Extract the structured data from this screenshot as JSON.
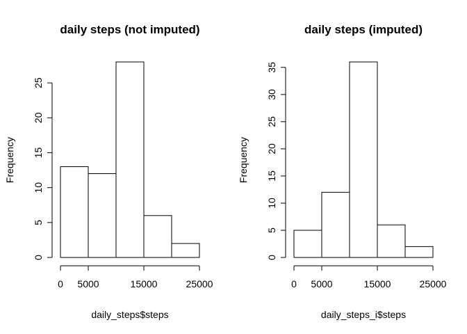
{
  "chart_data": [
    {
      "type": "bar",
      "title": "daily steps (not imputed)",
      "xlabel": "daily_steps$steps",
      "ylabel": "Frequency",
      "bins": [
        [
          0,
          5000
        ],
        [
          5000,
          10000
        ],
        [
          10000,
          15000
        ],
        [
          15000,
          20000
        ],
        [
          20000,
          25000
        ]
      ],
      "values": [
        13,
        12,
        28,
        6,
        2
      ],
      "xlim": [
        0,
        25000
      ],
      "ylim": [
        0,
        28
      ],
      "x_ticks": [
        0,
        5000,
        15000,
        25000
      ],
      "x_tick_labels": [
        "0",
        "5000",
        "15000",
        "25000"
      ],
      "y_ticks": [
        0,
        5,
        10,
        15,
        20,
        25
      ],
      "y_tick_labels": [
        "0",
        "5",
        "10",
        "15",
        "20",
        "25"
      ],
      "grid": false
    },
    {
      "type": "bar",
      "title": "daily steps (imputed)",
      "xlabel": "daily_steps_i$steps",
      "ylabel": "Frequency",
      "bins": [
        [
          0,
          5000
        ],
        [
          5000,
          10000
        ],
        [
          10000,
          15000
        ],
        [
          15000,
          20000
        ],
        [
          20000,
          25000
        ]
      ],
      "values": [
        5,
        12,
        36,
        6,
        2
      ],
      "xlim": [
        0,
        25000
      ],
      "ylim": [
        0,
        36
      ],
      "x_ticks": [
        0,
        5000,
        15000,
        25000
      ],
      "x_tick_labels": [
        "0",
        "5000",
        "15000",
        "25000"
      ],
      "y_ticks": [
        0,
        5,
        10,
        15,
        20,
        25,
        30,
        35
      ],
      "y_tick_labels": [
        "0",
        "5",
        "10",
        "15",
        "20",
        "25",
        "30",
        "35"
      ],
      "grid": false
    }
  ]
}
